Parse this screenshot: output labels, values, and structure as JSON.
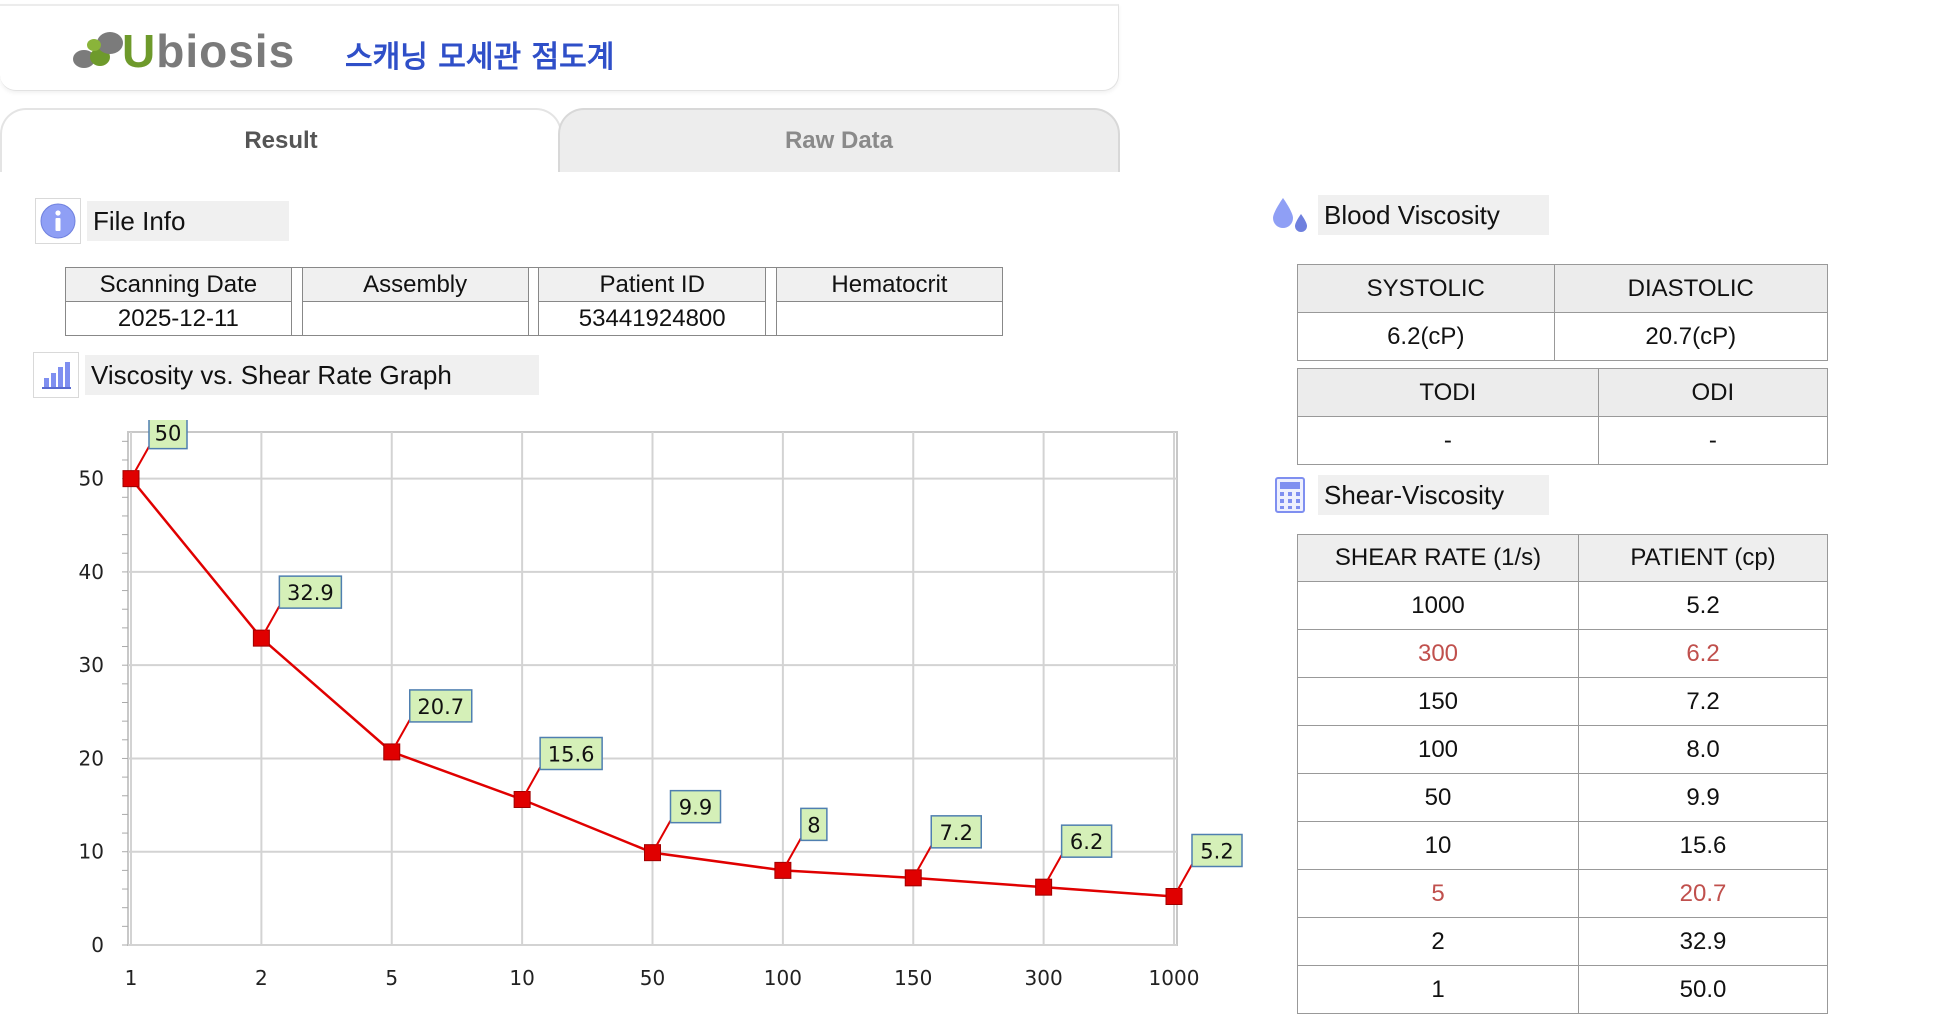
{
  "header": {
    "logo_text": "Ubiosis",
    "app_title": "스캐닝 모세관 점도계"
  },
  "tabs": [
    {
      "label": "Result",
      "active": true
    },
    {
      "label": "Raw Data",
      "active": false
    }
  ],
  "file_info": {
    "title": "File Info",
    "columns": [
      "Scanning Date",
      "Assembly",
      "Patient ID",
      "Hematocrit"
    ],
    "values": [
      "2025-12-11",
      "",
      "53441924800",
      ""
    ]
  },
  "graph": {
    "title": "Viscosity vs. Shear Rate Graph"
  },
  "chart_data": {
    "type": "line",
    "x": [
      "1",
      "2",
      "5",
      "10",
      "50",
      "100",
      "150",
      "300",
      "1000"
    ],
    "y": [
      50,
      32.9,
      20.7,
      15.6,
      9.9,
      8,
      7.2,
      6.2,
      5.2
    ],
    "data_labels": [
      "50",
      "32.9",
      "20.7",
      "15.6",
      "9.9",
      "8",
      "7.2",
      "6.2",
      "5.2"
    ],
    "yticks": [
      0,
      10,
      20,
      30,
      40,
      50
    ],
    "ylim": [
      0,
      55
    ],
    "grid": true,
    "marker": "square",
    "line_color": "#e00000",
    "label_bg": "#d5f0b8",
    "label_border": "#4f7fb0"
  },
  "blood_viscosity": {
    "title": "Blood Viscosity",
    "headers1": [
      "SYSTOLIC",
      "DIASTOLIC"
    ],
    "values1": [
      "6.2(cP)",
      "20.7(cP)"
    ],
    "headers2": [
      "TODI",
      "ODI"
    ],
    "values2": [
      "-",
      "-"
    ]
  },
  "shear_viscosity": {
    "title": "Shear-Viscosity",
    "headers": [
      "SHEAR RATE (1/s)",
      "PATIENT (cp)"
    ],
    "highlight_color": "#c0504d",
    "rows": [
      {
        "rate": "1000",
        "value": "5.2",
        "highlight": false
      },
      {
        "rate": "300",
        "value": "6.2",
        "highlight": true
      },
      {
        "rate": "150",
        "value": "7.2",
        "highlight": false
      },
      {
        "rate": "100",
        "value": "8.0",
        "highlight": false
      },
      {
        "rate": "50",
        "value": "9.9",
        "highlight": false
      },
      {
        "rate": "10",
        "value": "15.6",
        "highlight": false
      },
      {
        "rate": "5",
        "value": "20.7",
        "highlight": true
      },
      {
        "rate": "2",
        "value": "32.9",
        "highlight": false
      },
      {
        "rate": "1",
        "value": "50.0",
        "highlight": false
      }
    ]
  },
  "icons": {
    "file_info": "info-icon",
    "graph": "bar-chart-icon",
    "blood_viscosity": "blood-drop-icon",
    "shear_viscosity": "calculator-icon"
  }
}
